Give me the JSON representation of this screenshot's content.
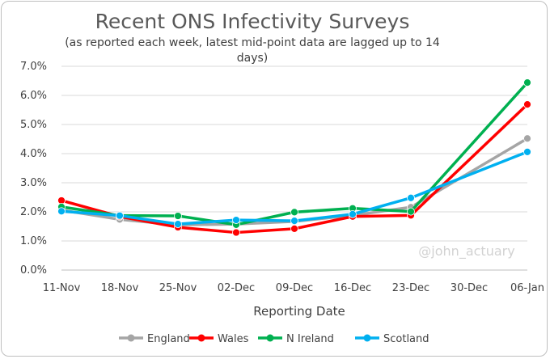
{
  "chart_data": {
    "type": "line",
    "title": "Recent ONS Infectivity Surveys",
    "subtitle_lines": [
      "(as reported each week, latest mid-point data are lagged up to 14",
      "days)"
    ],
    "xlabel": "Reporting Date",
    "ylabel": "",
    "categories": [
      "11-Nov",
      "18-Nov",
      "25-Nov",
      "02-Dec",
      "09-Dec",
      "16-Dec",
      "23-Dec",
      "30-Dec",
      "06-Jan"
    ],
    "ylim": [
      0,
      7
    ],
    "yticks": [
      0,
      1,
      2,
      3,
      4,
      5,
      6,
      7
    ],
    "ytick_labels": [
      "0.0%",
      "1.0%",
      "2.0%",
      "3.0%",
      "4.0%",
      "5.0%",
      "6.0%",
      "7.0%"
    ],
    "grid": true,
    "legend_position": "bottom",
    "watermark": "@john_actuary",
    "series": [
      {
        "name": "England",
        "color": "#a5a5a5",
        "values": [
          2.06,
          1.74,
          1.55,
          1.58,
          1.67,
          1.88,
          2.16,
          null,
          4.52
        ]
      },
      {
        "name": "Wales",
        "color": "#ff0000",
        "values": [
          2.39,
          1.84,
          1.47,
          1.29,
          1.42,
          1.84,
          1.88,
          null,
          5.69
        ]
      },
      {
        "name": "N Ireland",
        "color": "#00b050",
        "values": [
          2.17,
          1.87,
          1.86,
          1.56,
          1.99,
          2.12,
          2.01,
          null,
          6.44
        ]
      },
      {
        "name": "Scotland",
        "color": "#00b0f0",
        "values": [
          2.02,
          1.87,
          1.58,
          1.72,
          1.69,
          1.92,
          2.48,
          null,
          4.06
        ]
      }
    ]
  }
}
